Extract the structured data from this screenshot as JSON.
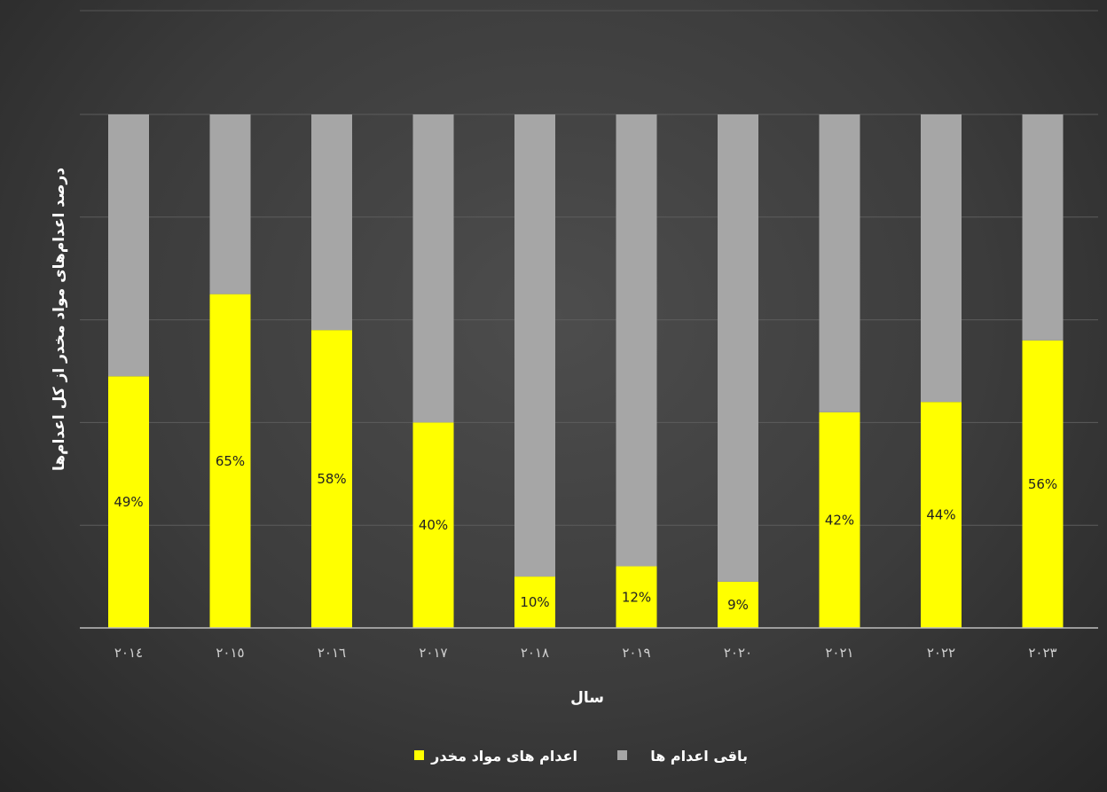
{
  "chart_data": {
    "type": "bar",
    "stacked": true,
    "percent_stacked": true,
    "categories": [
      "٢٠١٤",
      "٢٠١٥",
      "٢٠١٦",
      "٢٠١٧",
      "٢٠١٨",
      "٢٠١٩",
      "٢٠٢٠",
      "٢٠٢١",
      "٢٠٢٢",
      "٢٠٢٣"
    ],
    "series": [
      {
        "name": "اعدام های مواد مخدر",
        "color": "#ffff00",
        "values": [
          49,
          65,
          58,
          40,
          10,
          12,
          9,
          42,
          44,
          56
        ],
        "labels": [
          "49%",
          "65%",
          "58%",
          "40%",
          "10%",
          "12%",
          "9%",
          "42%",
          "44%",
          "56%"
        ]
      },
      {
        "name": "باقی اعدام ها",
        "color": "#a6a6a6",
        "values": [
          51,
          35,
          42,
          60,
          90,
          88,
          91,
          58,
          56,
          44
        ]
      }
    ],
    "xlabel": "سال",
    "ylabel": "درصد اعدام‌های مواد مخدر از کل اعدام‌ها",
    "ylim": [
      0,
      100
    ],
    "grid": true,
    "legend_position": "bottom"
  }
}
